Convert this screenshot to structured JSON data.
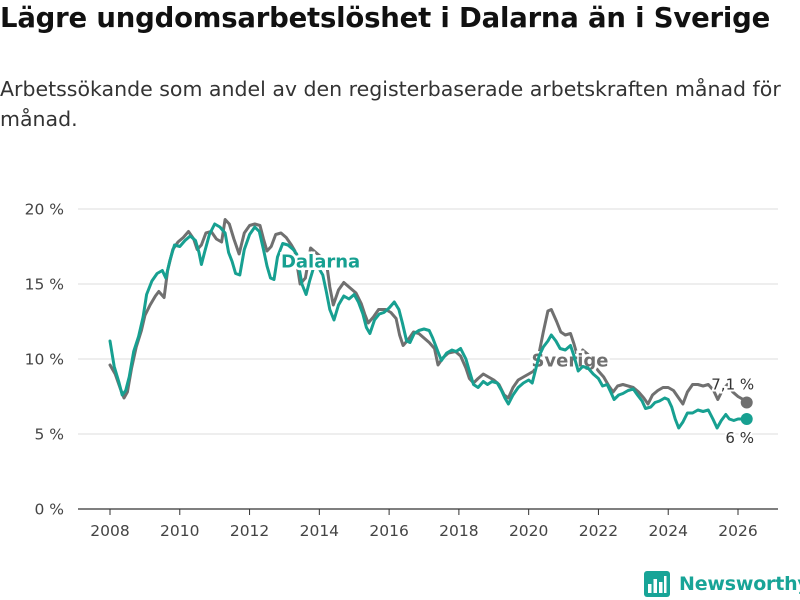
{
  "title": "Lägre ungdomsarbetslöshet i Dalarna än i Sverige",
  "subtitle": "Arbetssökande som andel av den registerbaserade arbetskraften månad för månad.",
  "brand": {
    "name": "Newsworthy",
    "icon": "bar-chart-logo-icon"
  },
  "colors": {
    "dalarna": "#17a091",
    "sverige": "#707070",
    "grid": "#dddddd",
    "axis": "#333333",
    "brand": "#18a497"
  },
  "chart_data": {
    "type": "line",
    "title": "Lägre ungdomsarbetslöshet i Dalarna än i Sverige",
    "xlabel": "",
    "ylabel": "",
    "xlim": [
      2007.7,
      2027.2
    ],
    "ylim": [
      0,
      20.5
    ],
    "x_ticks": [
      2008,
      2010,
      2012,
      2014,
      2016,
      2018,
      2020,
      2022,
      2024,
      2026
    ],
    "x_tick_labels": [
      "2008",
      "2010",
      "2012",
      "2014",
      "2016",
      "2018",
      "2020",
      "2022",
      "2024",
      "2026"
    ],
    "y_ticks": [
      0,
      5,
      10,
      15,
      20
    ],
    "y_tick_labels": [
      "0 %",
      "5 %",
      "10 %",
      "15 %",
      "20 %"
    ],
    "series": [
      {
        "name": "Sverige",
        "label_text": "Sverige",
        "end_label": "7,1 %",
        "label_pos": [
          2020.08,
          9.5
        ],
        "points": [
          [
            2008.0,
            9.6
          ],
          [
            2008.15,
            9.0
          ],
          [
            2008.3,
            8.0
          ],
          [
            2008.4,
            7.4
          ],
          [
            2008.5,
            7.8
          ],
          [
            2008.62,
            9.4
          ],
          [
            2008.75,
            10.8
          ],
          [
            2008.9,
            11.9
          ],
          [
            2009.0,
            12.9
          ],
          [
            2009.15,
            13.6
          ],
          [
            2009.3,
            14.2
          ],
          [
            2009.4,
            14.5
          ],
          [
            2009.55,
            14.1
          ],
          [
            2009.65,
            15.9
          ],
          [
            2009.8,
            17.3
          ],
          [
            2009.95,
            17.8
          ],
          [
            2010.1,
            18.1
          ],
          [
            2010.25,
            18.5
          ],
          [
            2010.4,
            18.0
          ],
          [
            2010.5,
            17.3
          ],
          [
            2010.62,
            17.6
          ],
          [
            2010.75,
            18.4
          ],
          [
            2010.9,
            18.5
          ],
          [
            2011.05,
            18.0
          ],
          [
            2011.2,
            17.8
          ],
          [
            2011.3,
            19.3
          ],
          [
            2011.42,
            19.0
          ],
          [
            2011.55,
            18.0
          ],
          [
            2011.7,
            17.0
          ],
          [
            2011.85,
            18.4
          ],
          [
            2012.0,
            18.9
          ],
          [
            2012.15,
            19.0
          ],
          [
            2012.3,
            18.9
          ],
          [
            2012.4,
            18.0
          ],
          [
            2012.5,
            17.2
          ],
          [
            2012.62,
            17.5
          ],
          [
            2012.75,
            18.3
          ],
          [
            2012.9,
            18.4
          ],
          [
            2013.05,
            18.1
          ],
          [
            2013.2,
            17.6
          ],
          [
            2013.3,
            17.2
          ],
          [
            2013.45,
            15.0
          ],
          [
            2013.6,
            15.4
          ],
          [
            2013.75,
            17.4
          ],
          [
            2013.9,
            17.1
          ],
          [
            2014.05,
            16.8
          ],
          [
            2014.2,
            16.5
          ],
          [
            2014.3,
            14.8
          ],
          [
            2014.4,
            13.6
          ],
          [
            2014.55,
            14.6
          ],
          [
            2014.7,
            15.1
          ],
          [
            2014.85,
            14.8
          ],
          [
            2015.05,
            14.4
          ],
          [
            2015.2,
            13.7
          ],
          [
            2015.3,
            13.0
          ],
          [
            2015.4,
            12.4
          ],
          [
            2015.55,
            12.8
          ],
          [
            2015.7,
            13.3
          ],
          [
            2015.9,
            13.3
          ],
          [
            2016.05,
            13.1
          ],
          [
            2016.2,
            12.7
          ],
          [
            2016.3,
            11.6
          ],
          [
            2016.4,
            10.9
          ],
          [
            2016.55,
            11.3
          ],
          [
            2016.7,
            11.8
          ],
          [
            2016.85,
            11.7
          ],
          [
            2017.0,
            11.4
          ],
          [
            2017.15,
            11.1
          ],
          [
            2017.3,
            10.7
          ],
          [
            2017.4,
            9.6
          ],
          [
            2017.55,
            10.1
          ],
          [
            2017.7,
            10.4
          ],
          [
            2017.9,
            10.5
          ],
          [
            2018.05,
            10.2
          ],
          [
            2018.2,
            9.4
          ],
          [
            2018.3,
            8.7
          ],
          [
            2018.42,
            8.4
          ],
          [
            2018.55,
            8.7
          ],
          [
            2018.7,
            9.0
          ],
          [
            2018.85,
            8.8
          ],
          [
            2019.0,
            8.6
          ],
          [
            2019.15,
            8.3
          ],
          [
            2019.3,
            7.6
          ],
          [
            2019.42,
            7.4
          ],
          [
            2019.55,
            8.1
          ],
          [
            2019.7,
            8.6
          ],
          [
            2019.85,
            8.8
          ],
          [
            2020.0,
            9.0
          ],
          [
            2020.15,
            9.2
          ],
          [
            2020.3,
            10.4
          ],
          [
            2020.42,
            11.8
          ],
          [
            2020.55,
            13.2
          ],
          [
            2020.65,
            13.3
          ],
          [
            2020.8,
            12.5
          ],
          [
            2020.92,
            11.8
          ],
          [
            2021.05,
            11.6
          ],
          [
            2021.2,
            11.7
          ],
          [
            2021.3,
            11.0
          ],
          [
            2021.42,
            10.0
          ],
          [
            2021.55,
            10.6
          ],
          [
            2021.7,
            10.3
          ],
          [
            2021.85,
            9.7
          ],
          [
            2022.0,
            9.2
          ],
          [
            2022.15,
            8.8
          ],
          [
            2022.3,
            8.2
          ],
          [
            2022.42,
            7.8
          ],
          [
            2022.55,
            8.2
          ],
          [
            2022.7,
            8.3
          ],
          [
            2022.85,
            8.2
          ],
          [
            2023.0,
            8.1
          ],
          [
            2023.15,
            7.8
          ],
          [
            2023.3,
            7.4
          ],
          [
            2023.42,
            7.0
          ],
          [
            2023.55,
            7.6
          ],
          [
            2023.7,
            7.9
          ],
          [
            2023.85,
            8.1
          ],
          [
            2024.0,
            8.1
          ],
          [
            2024.15,
            7.9
          ],
          [
            2024.3,
            7.4
          ],
          [
            2024.42,
            7.0
          ],
          [
            2024.55,
            7.8
          ],
          [
            2024.7,
            8.3
          ],
          [
            2024.85,
            8.3
          ],
          [
            2025.0,
            8.2
          ],
          [
            2025.15,
            8.3
          ],
          [
            2025.3,
            7.9
          ],
          [
            2025.42,
            7.3
          ],
          [
            2025.55,
            7.9
          ],
          [
            2025.7,
            8.3
          ],
          [
            2025.85,
            7.8
          ],
          [
            2026.0,
            7.5
          ],
          [
            2026.15,
            7.3
          ],
          [
            2026.25,
            7.1
          ]
        ]
      },
      {
        "name": "Dalarna",
        "label_text": "Dalarna",
        "end_label": "6 %",
        "label_pos": [
          2012.9,
          16.1
        ],
        "points": [
          [
            2008.0,
            11.2
          ],
          [
            2008.12,
            9.5
          ],
          [
            2008.25,
            8.5
          ],
          [
            2008.35,
            7.6
          ],
          [
            2008.45,
            7.9
          ],
          [
            2008.55,
            8.8
          ],
          [
            2008.68,
            10.5
          ],
          [
            2008.82,
            11.5
          ],
          [
            2008.95,
            12.8
          ],
          [
            2009.05,
            14.3
          ],
          [
            2009.2,
            15.2
          ],
          [
            2009.35,
            15.7
          ],
          [
            2009.5,
            15.9
          ],
          [
            2009.6,
            15.4
          ],
          [
            2009.72,
            16.6
          ],
          [
            2009.85,
            17.6
          ],
          [
            2010.0,
            17.5
          ],
          [
            2010.15,
            17.9
          ],
          [
            2010.3,
            18.2
          ],
          [
            2010.45,
            17.9
          ],
          [
            2010.55,
            17.1
          ],
          [
            2010.62,
            16.3
          ],
          [
            2010.72,
            17.2
          ],
          [
            2010.85,
            18.3
          ],
          [
            2011.0,
            19.0
          ],
          [
            2011.15,
            18.8
          ],
          [
            2011.3,
            18.4
          ],
          [
            2011.4,
            17.1
          ],
          [
            2011.5,
            16.5
          ],
          [
            2011.6,
            15.7
          ],
          [
            2011.72,
            15.6
          ],
          [
            2011.85,
            17.3
          ],
          [
            2012.0,
            18.3
          ],
          [
            2012.15,
            18.8
          ],
          [
            2012.28,
            18.5
          ],
          [
            2012.4,
            17.3
          ],
          [
            2012.5,
            16.2
          ],
          [
            2012.6,
            15.4
          ],
          [
            2012.7,
            15.3
          ],
          [
            2012.8,
            16.8
          ],
          [
            2012.95,
            17.7
          ],
          [
            2013.1,
            17.6
          ],
          [
            2013.25,
            17.3
          ],
          [
            2013.35,
            17.0
          ],
          [
            2013.5,
            15.0
          ],
          [
            2013.62,
            14.3
          ],
          [
            2013.72,
            15.2
          ],
          [
            2013.85,
            16.2
          ],
          [
            2014.0,
            16.0
          ],
          [
            2014.1,
            15.6
          ],
          [
            2014.2,
            14.5
          ],
          [
            2014.3,
            13.3
          ],
          [
            2014.42,
            12.6
          ],
          [
            2014.55,
            13.6
          ],
          [
            2014.7,
            14.2
          ],
          [
            2014.85,
            14.0
          ],
          [
            2015.0,
            14.3
          ],
          [
            2015.12,
            13.8
          ],
          [
            2015.25,
            13.0
          ],
          [
            2015.35,
            12.1
          ],
          [
            2015.45,
            11.7
          ],
          [
            2015.58,
            12.6
          ],
          [
            2015.72,
            13.0
          ],
          [
            2015.85,
            13.1
          ],
          [
            2016.0,
            13.4
          ],
          [
            2016.15,
            13.8
          ],
          [
            2016.28,
            13.3
          ],
          [
            2016.38,
            12.4
          ],
          [
            2016.5,
            11.2
          ],
          [
            2016.6,
            11.1
          ],
          [
            2016.72,
            11.7
          ],
          [
            2016.85,
            11.9
          ],
          [
            2017.0,
            12.0
          ],
          [
            2017.15,
            11.9
          ],
          [
            2017.25,
            11.4
          ],
          [
            2017.38,
            10.6
          ],
          [
            2017.5,
            9.9
          ],
          [
            2017.65,
            10.4
          ],
          [
            2017.8,
            10.6
          ],
          [
            2017.92,
            10.5
          ],
          [
            2018.05,
            10.7
          ],
          [
            2018.2,
            10.0
          ],
          [
            2018.3,
            9.2
          ],
          [
            2018.42,
            8.3
          ],
          [
            2018.55,
            8.1
          ],
          [
            2018.7,
            8.5
          ],
          [
            2018.82,
            8.3
          ],
          [
            2018.95,
            8.5
          ],
          [
            2019.1,
            8.4
          ],
          [
            2019.22,
            7.9
          ],
          [
            2019.32,
            7.4
          ],
          [
            2019.42,
            7.0
          ],
          [
            2019.55,
            7.6
          ],
          [
            2019.7,
            8.1
          ],
          [
            2019.85,
            8.4
          ],
          [
            2020.0,
            8.6
          ],
          [
            2020.1,
            8.4
          ],
          [
            2020.3,
            10.2
          ],
          [
            2020.42,
            10.8
          ],
          [
            2020.55,
            11.2
          ],
          [
            2020.65,
            11.6
          ],
          [
            2020.78,
            11.2
          ],
          [
            2020.9,
            10.7
          ],
          [
            2021.05,
            10.6
          ],
          [
            2021.2,
            10.9
          ],
          [
            2021.3,
            10.2
          ],
          [
            2021.42,
            9.2
          ],
          [
            2021.55,
            9.5
          ],
          [
            2021.7,
            9.4
          ],
          [
            2021.85,
            9.0
          ],
          [
            2022.0,
            8.7
          ],
          [
            2022.12,
            8.2
          ],
          [
            2022.25,
            8.3
          ],
          [
            2022.35,
            7.8
          ],
          [
            2022.45,
            7.3
          ],
          [
            2022.58,
            7.6
          ],
          [
            2022.7,
            7.7
          ],
          [
            2022.85,
            7.9
          ],
          [
            2023.0,
            8.0
          ],
          [
            2023.12,
            7.6
          ],
          [
            2023.25,
            7.2
          ],
          [
            2023.35,
            6.7
          ],
          [
            2023.5,
            6.8
          ],
          [
            2023.62,
            7.1
          ],
          [
            2023.75,
            7.2
          ],
          [
            2023.9,
            7.4
          ],
          [
            2024.0,
            7.3
          ],
          [
            2024.1,
            6.8
          ],
          [
            2024.2,
            6.0
          ],
          [
            2024.3,
            5.4
          ],
          [
            2024.42,
            5.8
          ],
          [
            2024.55,
            6.4
          ],
          [
            2024.7,
            6.4
          ],
          [
            2024.85,
            6.6
          ],
          [
            2025.0,
            6.5
          ],
          [
            2025.15,
            6.6
          ],
          [
            2025.28,
            6.0
          ],
          [
            2025.4,
            5.4
          ],
          [
            2025.52,
            5.9
          ],
          [
            2025.65,
            6.3
          ],
          [
            2025.75,
            6.0
          ],
          [
            2025.88,
            5.9
          ],
          [
            2026.0,
            6.0
          ],
          [
            2026.12,
            6.0
          ],
          [
            2026.25,
            6.0
          ]
        ]
      }
    ]
  }
}
